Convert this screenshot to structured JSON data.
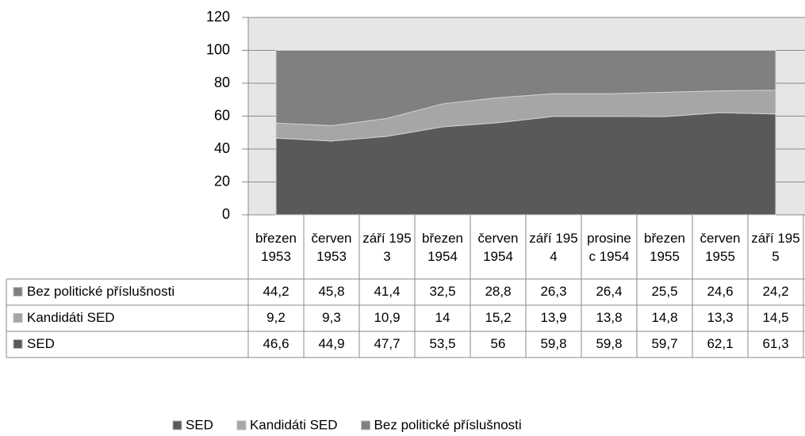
{
  "chart_data": {
    "type": "area",
    "categories": [
      "březen 1953",
      "červen 1953",
      "září 1953",
      "březen 1954",
      "červen 1954",
      "září 1954",
      "prosinec 1954",
      "březen 1955",
      "červen 1955",
      "září 1955"
    ],
    "series": [
      {
        "name": "SED",
        "color": "#595959",
        "values": [
          46.6,
          44.9,
          47.7,
          53.5,
          56,
          59.8,
          59.8,
          59.7,
          62.1,
          61.3
        ],
        "value_labels": [
          "46,6",
          "44,9",
          "47,7",
          "53,5",
          "56",
          "59,8",
          "59,8",
          "59,7",
          "62,1",
          "61,3"
        ]
      },
      {
        "name": "Kandidáti SED",
        "color": "#a6a6a6",
        "values": [
          9.2,
          9.3,
          10.9,
          14,
          15.2,
          13.9,
          13.8,
          14.8,
          13.3,
          14.5
        ],
        "value_labels": [
          "9,2",
          "9,3",
          "10,9",
          "14",
          "15,2",
          "13,9",
          "13,8",
          "14,8",
          "13,3",
          "14,5"
        ]
      },
      {
        "name": "Bez politické příslušnosti",
        "color": "#808080",
        "values": [
          44.2,
          45.8,
          41.4,
          32.5,
          28.8,
          26.3,
          26.4,
          25.5,
          24.6,
          24.2
        ],
        "value_labels": [
          "44,2",
          "45,8",
          "41,4",
          "32,5",
          "28,8",
          "26,3",
          "26,4",
          "25,5",
          "24,6",
          "24,2"
        ]
      }
    ],
    "stacked": true,
    "ylim": [
      0,
      120
    ],
    "yticks": [
      0,
      20,
      40,
      60,
      80,
      100,
      120
    ],
    "grid": true,
    "legend": "bottom",
    "data_table": true
  }
}
